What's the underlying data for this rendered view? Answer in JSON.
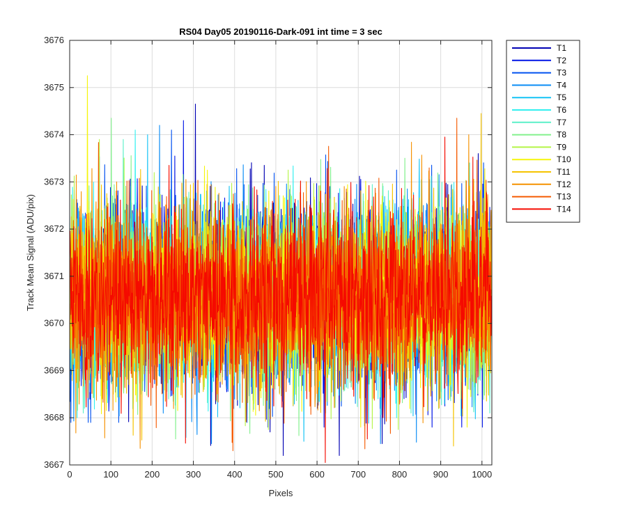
{
  "chart_data": {
    "type": "line",
    "title": "RS04 Day05 20190116-Dark-091 int time = 3 sec",
    "xlabel": "Pixels",
    "ylabel": "Track Mean Signal (ADU/pix)",
    "xlim": [
      0,
      1024
    ],
    "ylim": [
      3667,
      3676
    ],
    "xticks": [
      "0",
      "100",
      "200",
      "300",
      "400",
      "500",
      "600",
      "700",
      "800",
      "900",
      "1000"
    ],
    "yticks": [
      "3667",
      "3668",
      "3669",
      "3670",
      "3671",
      "3672",
      "3673",
      "3674",
      "3675",
      "3676"
    ],
    "grid": true,
    "legend_position": "outside-top-right",
    "points_per_series": 1024,
    "series": [
      {
        "name": "T1",
        "color": "#0000b3",
        "mean": 3670.6,
        "std": 0.95,
        "max_dev": [
          3674.65,
          3667.2
        ]
      },
      {
        "name": "T2",
        "color": "#0014e6",
        "mean": 3670.6,
        "std": 0.95,
        "max_dev": [
          3674.3,
          3667.8
        ]
      },
      {
        "name": "T3",
        "color": "#0050f0",
        "mean": 3670.6,
        "std": 0.95,
        "max_dev": [
          3674.1,
          3667.9
        ]
      },
      {
        "name": "T4",
        "color": "#0a8cf5",
        "mean": 3670.6,
        "std": 0.95,
        "max_dev": [
          3674.2,
          3667.45
        ]
      },
      {
        "name": "T5",
        "color": "#14c3f5",
        "mean": 3670.6,
        "std": 0.95,
        "max_dev": [
          3674.0,
          3667.5
        ]
      },
      {
        "name": "T6",
        "color": "#32f0f0",
        "mean": 3670.6,
        "std": 0.95,
        "max_dev": [
          3674.1,
          3668.0
        ]
      },
      {
        "name": "T7",
        "color": "#5af0c8",
        "mean": 3670.6,
        "std": 0.95,
        "max_dev": [
          3673.9,
          3668.1
        ]
      },
      {
        "name": "T8",
        "color": "#82f08c",
        "mean": 3670.6,
        "std": 0.95,
        "max_dev": [
          3674.35,
          3667.55
        ]
      },
      {
        "name": "T9",
        "color": "#b4f546",
        "mean": 3670.6,
        "std": 0.95,
        "max_dev": [
          3673.9,
          3667.75
        ]
      },
      {
        "name": "T10",
        "color": "#f5f50a",
        "mean": 3670.6,
        "std": 0.95,
        "max_dev": [
          3675.25,
          3667.8
        ]
      },
      {
        "name": "T11",
        "color": "#f5c300",
        "mean": 3670.6,
        "std": 0.95,
        "max_dev": [
          3674.45,
          3667.4
        ]
      },
      {
        "name": "T12",
        "color": "#f59100",
        "mean": 3670.6,
        "std": 0.95,
        "max_dev": [
          3674.0,
          3667.35
        ]
      },
      {
        "name": "T13",
        "color": "#f55a00",
        "mean": 3670.6,
        "std": 0.95,
        "max_dev": [
          3674.35,
          3667.3
        ]
      },
      {
        "name": "T14",
        "color": "#f50a00",
        "mean": 3670.6,
        "std": 0.95,
        "max_dev": [
          3673.95,
          3667.05
        ]
      }
    ]
  }
}
